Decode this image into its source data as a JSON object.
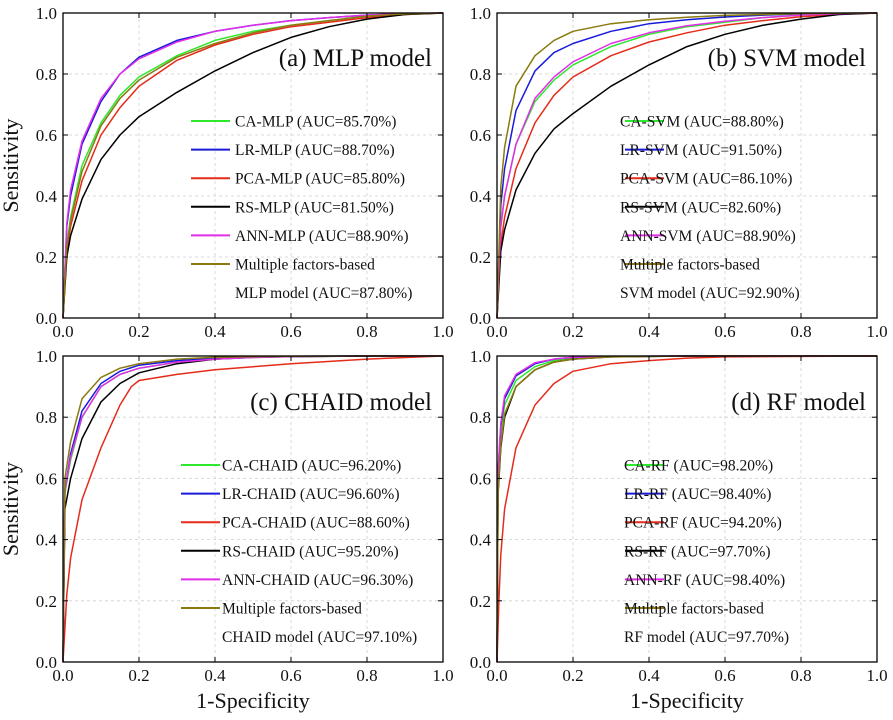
{
  "colors": {
    "CA": "#2ee82e",
    "LR": "#1a1adb",
    "PCA": "#e52b1a",
    "RS": "#000000",
    "ANN": "#e22ee8",
    "Multiple": "#8a7a10"
  },
  "chart_data": [
    {
      "type": "line",
      "title": "(a) MLP model",
      "xlabel": "",
      "ylabel": "Sensitivity",
      "xlim": [
        0,
        1
      ],
      "ylim": [
        0,
        1
      ],
      "xticks": [
        "0.0",
        "0.2",
        "0.4",
        "0.6",
        "0.8",
        "1.0"
      ],
      "yticks": [
        "0.0",
        "0.2",
        "0.4",
        "0.6",
        "0.8",
        "1.0"
      ],
      "grid": true,
      "legend_position": "center-right",
      "series": [
        {
          "key": "CA",
          "legend": [
            "CA-MLP (AUC=85.70%)"
          ],
          "x": [
            0,
            0.01,
            0.02,
            0.05,
            0.1,
            0.15,
            0.2,
            0.3,
            0.4,
            0.5,
            0.6,
            0.7,
            0.8,
            0.9,
            1
          ],
          "y": [
            0,
            0.24,
            0.33,
            0.5,
            0.64,
            0.73,
            0.79,
            0.86,
            0.91,
            0.94,
            0.96,
            0.975,
            0.99,
            0.996,
            1
          ]
        },
        {
          "key": "LR",
          "legend": [
            "LR-MLP (AUC=88.70%)"
          ],
          "x": [
            0,
            0.01,
            0.02,
            0.05,
            0.1,
            0.15,
            0.2,
            0.3,
            0.4,
            0.5,
            0.6,
            0.7,
            0.8,
            0.9,
            1
          ],
          "y": [
            0,
            0.3,
            0.4,
            0.57,
            0.71,
            0.8,
            0.855,
            0.91,
            0.94,
            0.96,
            0.975,
            0.985,
            0.993,
            0.998,
            1
          ]
        },
        {
          "key": "PCA",
          "legend": [
            "PCA-MLP (AUC=85.80%)"
          ],
          "x": [
            0,
            0.01,
            0.02,
            0.05,
            0.1,
            0.15,
            0.2,
            0.3,
            0.4,
            0.5,
            0.6,
            0.7,
            0.8,
            0.9,
            1
          ],
          "y": [
            0,
            0.22,
            0.3,
            0.45,
            0.6,
            0.69,
            0.76,
            0.845,
            0.895,
            0.93,
            0.955,
            0.97,
            0.985,
            0.995,
            1
          ]
        },
        {
          "key": "RS",
          "legend": [
            "RS-MLP (AUC=81.50%)"
          ],
          "x": [
            0,
            0.01,
            0.02,
            0.05,
            0.1,
            0.15,
            0.2,
            0.3,
            0.4,
            0.5,
            0.6,
            0.7,
            0.8,
            0.9,
            1
          ],
          "y": [
            0,
            0.2,
            0.27,
            0.39,
            0.52,
            0.6,
            0.66,
            0.74,
            0.81,
            0.87,
            0.92,
            0.955,
            0.98,
            0.995,
            1
          ]
        },
        {
          "key": "ANN",
          "legend": [
            "ANN-MLP (AUC=88.90%)"
          ],
          "x": [
            0,
            0.01,
            0.02,
            0.05,
            0.1,
            0.15,
            0.2,
            0.3,
            0.4,
            0.5,
            0.6,
            0.7,
            0.8,
            0.9,
            1
          ],
          "y": [
            0,
            0.31,
            0.42,
            0.58,
            0.72,
            0.8,
            0.85,
            0.905,
            0.94,
            0.96,
            0.975,
            0.985,
            0.993,
            0.998,
            1
          ]
        },
        {
          "key": "Multiple",
          "legend": [
            "Multiple factors-based",
            "MLP model (AUC=87.80%)"
          ],
          "x": [
            0,
            0.01,
            0.02,
            0.05,
            0.1,
            0.15,
            0.2,
            0.3,
            0.4,
            0.5,
            0.6,
            0.7,
            0.8,
            0.9,
            1
          ],
          "y": [
            0,
            0.23,
            0.32,
            0.48,
            0.63,
            0.72,
            0.78,
            0.855,
            0.9,
            0.935,
            0.96,
            0.975,
            0.99,
            0.997,
            1
          ]
        }
      ]
    },
    {
      "type": "line",
      "title": "(b) SVM model",
      "xlabel": "",
      "ylabel": "",
      "xlim": [
        0,
        1
      ],
      "ylim": [
        0,
        1
      ],
      "xticks": [
        "0.0",
        "0.2",
        "0.4",
        "0.6",
        "0.8",
        "1.0"
      ],
      "yticks": [
        "0.0",
        "0.2",
        "0.4",
        "0.6",
        "0.8",
        "1.0"
      ],
      "grid": true,
      "legend_position": "center-right",
      "series": [
        {
          "key": "CA",
          "legend": [
            "CA-SVM (AUC=88.80%)"
          ],
          "x": [
            0,
            0.01,
            0.02,
            0.05,
            0.1,
            0.15,
            0.2,
            0.3,
            0.4,
            0.5,
            0.6,
            0.7,
            0.8,
            0.9,
            1
          ],
          "y": [
            0,
            0.3,
            0.4,
            0.57,
            0.71,
            0.78,
            0.83,
            0.89,
            0.93,
            0.955,
            0.97,
            0.985,
            0.993,
            0.998,
            1
          ]
        },
        {
          "key": "LR",
          "legend": [
            "LR-SVM (AUC=91.50%)"
          ],
          "x": [
            0,
            0.01,
            0.02,
            0.05,
            0.1,
            0.15,
            0.2,
            0.3,
            0.4,
            0.5,
            0.6,
            0.7,
            0.8,
            0.9,
            1
          ],
          "y": [
            0,
            0.37,
            0.49,
            0.68,
            0.81,
            0.87,
            0.9,
            0.94,
            0.965,
            0.978,
            0.987,
            0.993,
            0.997,
            0.999,
            1
          ]
        },
        {
          "key": "PCA",
          "legend": [
            "PCA-SVM (AUC=86.10%)"
          ],
          "x": [
            0,
            0.01,
            0.02,
            0.05,
            0.1,
            0.15,
            0.2,
            0.3,
            0.4,
            0.5,
            0.6,
            0.7,
            0.8,
            0.9,
            1
          ],
          "y": [
            0,
            0.24,
            0.33,
            0.49,
            0.64,
            0.73,
            0.79,
            0.86,
            0.905,
            0.935,
            0.96,
            0.975,
            0.988,
            0.996,
            1
          ]
        },
        {
          "key": "RS",
          "legend": [
            "RS-SVM (AUC=82.60%)"
          ],
          "x": [
            0,
            0.01,
            0.02,
            0.05,
            0.1,
            0.15,
            0.2,
            0.3,
            0.4,
            0.5,
            0.6,
            0.7,
            0.8,
            0.9,
            1
          ],
          "y": [
            0,
            0.22,
            0.29,
            0.42,
            0.54,
            0.62,
            0.67,
            0.76,
            0.83,
            0.89,
            0.93,
            0.96,
            0.98,
            0.995,
            1
          ]
        },
        {
          "key": "ANN",
          "legend": [
            "ANN-SVM (AUC=88.90%)"
          ],
          "x": [
            0,
            0.01,
            0.02,
            0.05,
            0.1,
            0.15,
            0.2,
            0.3,
            0.4,
            0.5,
            0.6,
            0.7,
            0.8,
            0.9,
            1
          ],
          "y": [
            0,
            0.3,
            0.4,
            0.57,
            0.72,
            0.79,
            0.84,
            0.9,
            0.935,
            0.958,
            0.973,
            0.985,
            0.993,
            0.998,
            1
          ]
        },
        {
          "key": "Multiple",
          "legend": [
            "Multiple factors-based",
            "SVM model (AUC=92.90%)"
          ],
          "x": [
            0,
            0.01,
            0.02,
            0.05,
            0.1,
            0.15,
            0.2,
            0.3,
            0.4,
            0.5,
            0.6,
            0.7,
            0.8,
            0.9,
            1
          ],
          "y": [
            0,
            0.43,
            0.56,
            0.76,
            0.86,
            0.91,
            0.94,
            0.965,
            0.978,
            0.986,
            0.992,
            0.995,
            0.998,
            0.999,
            1
          ]
        }
      ]
    },
    {
      "type": "line",
      "title": "(c) CHAID model",
      "xlabel": "1-Specificity",
      "ylabel": "Sensitivity",
      "xlim": [
        0,
        1
      ],
      "ylim": [
        0,
        1
      ],
      "xticks": [
        "0.0",
        "0.2",
        "0.4",
        "0.6",
        "0.8",
        "1.0"
      ],
      "yticks": [
        "0.0",
        "0.2",
        "0.4",
        "0.6",
        "0.8",
        "1.0"
      ],
      "grid": true,
      "legend_position": "center-right",
      "series": [
        {
          "key": "CA",
          "legend": [
            "CA-CHAID (AUC=96.20%)"
          ],
          "x": [
            0,
            0.005,
            0.02,
            0.05,
            0.1,
            0.15,
            0.2,
            0.3,
            0.4,
            0.5,
            0.6,
            0.8,
            1
          ],
          "y": [
            0,
            0.55,
            0.66,
            0.8,
            0.9,
            0.94,
            0.96,
            0.98,
            0.99,
            0.995,
            0.998,
            1,
            1
          ]
        },
        {
          "key": "LR",
          "legend": [
            "LR-CHAID (AUC=96.60%)"
          ],
          "x": [
            0,
            0.005,
            0.02,
            0.05,
            0.1,
            0.15,
            0.2,
            0.3,
            0.4,
            0.5,
            0.6,
            0.8,
            1
          ],
          "y": [
            0,
            0.56,
            0.68,
            0.82,
            0.91,
            0.95,
            0.97,
            0.985,
            0.993,
            0.997,
            0.999,
            1,
            1
          ]
        },
        {
          "key": "PCA",
          "legend": [
            "PCA-CHAID (AUC=88.60%)"
          ],
          "x": [
            0,
            0.01,
            0.02,
            0.05,
            0.1,
            0.15,
            0.18,
            0.2,
            0.3,
            0.4,
            0.5,
            0.6,
            0.8,
            1
          ],
          "y": [
            0,
            0.22,
            0.34,
            0.53,
            0.7,
            0.84,
            0.9,
            0.92,
            0.94,
            0.955,
            0.965,
            0.975,
            0.99,
            1
          ]
        },
        {
          "key": "RS",
          "legend": [
            "RS-CHAID (AUC=95.20%)"
          ],
          "x": [
            0,
            0.005,
            0.02,
            0.05,
            0.1,
            0.15,
            0.2,
            0.3,
            0.4,
            0.5,
            0.6,
            0.8,
            1
          ],
          "y": [
            0,
            0.5,
            0.6,
            0.73,
            0.85,
            0.91,
            0.945,
            0.975,
            0.99,
            0.996,
            0.998,
            1,
            1
          ]
        },
        {
          "key": "ANN",
          "legend": [
            "ANN-CHAID (AUC=96.30%)"
          ],
          "x": [
            0,
            0.005,
            0.02,
            0.05,
            0.1,
            0.15,
            0.2,
            0.3,
            0.4,
            0.5,
            0.6,
            0.8,
            1
          ],
          "y": [
            0,
            0.56,
            0.67,
            0.8,
            0.9,
            0.94,
            0.96,
            0.98,
            0.99,
            0.995,
            0.998,
            1,
            1
          ]
        },
        {
          "key": "Multiple",
          "legend": [
            "Multiple factors-based",
            "CHAID model (AUC=97.10%)"
          ],
          "x": [
            0,
            0.005,
            0.02,
            0.05,
            0.1,
            0.15,
            0.2,
            0.3,
            0.4,
            0.5,
            0.6,
            0.8,
            1
          ],
          "y": [
            0,
            0.6,
            0.72,
            0.86,
            0.93,
            0.96,
            0.975,
            0.99,
            0.996,
            0.998,
            0.999,
            1,
            1
          ]
        }
      ]
    },
    {
      "type": "line",
      "title": "(d) RF model",
      "xlabel": "1-Specificity",
      "ylabel": "",
      "xlim": [
        0,
        1
      ],
      "ylim": [
        0,
        1
      ],
      "xticks": [
        "0.0",
        "0.2",
        "0.4",
        "0.6",
        "0.8",
        "1.0"
      ],
      "yticks": [
        "0.0",
        "0.2",
        "0.4",
        "0.6",
        "0.8",
        "1.0"
      ],
      "grid": true,
      "legend_position": "center-right",
      "series": [
        {
          "key": "CA",
          "legend": [
            "CA-RF (AUC=98.20%)"
          ],
          "x": [
            0,
            0.003,
            0.01,
            0.02,
            0.05,
            0.1,
            0.15,
            0.2,
            0.3,
            0.5,
            1
          ],
          "y": [
            0,
            0.6,
            0.75,
            0.84,
            0.92,
            0.965,
            0.985,
            0.993,
            0.998,
            1,
            1
          ]
        },
        {
          "key": "LR",
          "legend": [
            "LR-RF (AUC=98.40%)"
          ],
          "x": [
            0,
            0.003,
            0.01,
            0.02,
            0.05,
            0.1,
            0.15,
            0.2,
            0.3,
            0.5,
            1
          ],
          "y": [
            0,
            0.62,
            0.77,
            0.86,
            0.935,
            0.975,
            0.99,
            0.996,
            0.999,
            1,
            1
          ]
        },
        {
          "key": "PCA",
          "legend": [
            "PCA-RF (AUC=94.20%)"
          ],
          "x": [
            0,
            0.005,
            0.01,
            0.02,
            0.05,
            0.1,
            0.15,
            0.2,
            0.3,
            0.4,
            0.5,
            0.6,
            1
          ],
          "y": [
            0,
            0.2,
            0.35,
            0.5,
            0.7,
            0.84,
            0.91,
            0.95,
            0.975,
            0.985,
            0.993,
            0.997,
            1
          ]
        },
        {
          "key": "RS",
          "legend": [
            "RS-RF (AUC=97.70%)"
          ],
          "x": [
            0,
            0.003,
            0.01,
            0.02,
            0.05,
            0.1,
            0.15,
            0.2,
            0.3,
            0.5,
            1
          ],
          "y": [
            0,
            0.55,
            0.7,
            0.8,
            0.9,
            0.955,
            0.98,
            0.99,
            0.997,
            1,
            1
          ]
        },
        {
          "key": "ANN",
          "legend": [
            "ANN-RF (AUC=98.40%)"
          ],
          "x": [
            0,
            0.003,
            0.01,
            0.02,
            0.05,
            0.1,
            0.15,
            0.2,
            0.3,
            0.5,
            1
          ],
          "y": [
            0,
            0.63,
            0.78,
            0.87,
            0.94,
            0.978,
            0.99,
            0.996,
            0.999,
            1,
            1
          ]
        },
        {
          "key": "Multiple",
          "legend": [
            "Multiple factors-based",
            "RF model (AUC=97.70%)"
          ],
          "x": [
            0,
            0.003,
            0.01,
            0.02,
            0.05,
            0.1,
            0.15,
            0.2,
            0.3,
            0.5,
            1
          ],
          "y": [
            0,
            0.56,
            0.71,
            0.81,
            0.9,
            0.955,
            0.98,
            0.99,
            0.997,
            1,
            1
          ]
        }
      ]
    }
  ]
}
